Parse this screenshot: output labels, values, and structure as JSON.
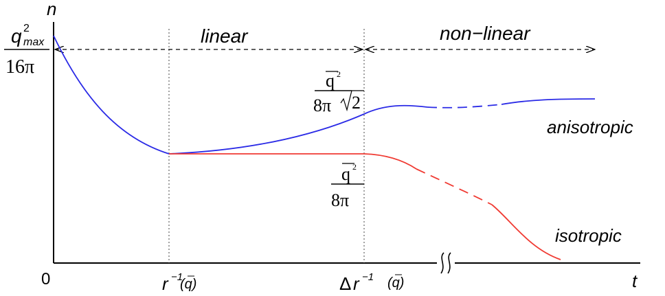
{
  "axes": {
    "x_label": "t",
    "y_label": "n",
    "origin": "0"
  },
  "y_top": {
    "numerator_base": "q",
    "numerator_sup": "2",
    "numerator_sub": "max",
    "denominator": "16π"
  },
  "regions": {
    "linear": "linear",
    "nonlinear": "non−linear"
  },
  "x_ticks": {
    "tick1_base": "r",
    "tick1_sup": "−1",
    "tick1_arg": "(q)",
    "tick2_prefix": "Δ",
    "tick2_base": "r",
    "tick2_sup": "−1",
    "tick2_arg": "(q)"
  },
  "curve_labels": {
    "anisotropic": "anisotropic",
    "isotropic": "isotropic"
  },
  "annotations": {
    "aniso_num": "q",
    "aniso_num_sup": "2",
    "aniso_den": "8π",
    "aniso_sqrt": "2",
    "iso_num": "q",
    "iso_num_sup": "2",
    "iso_den": "8π"
  },
  "colors": {
    "anisotropic": "#2a2ae6",
    "isotropic": "#f03a32",
    "axes": "#000000"
  }
}
